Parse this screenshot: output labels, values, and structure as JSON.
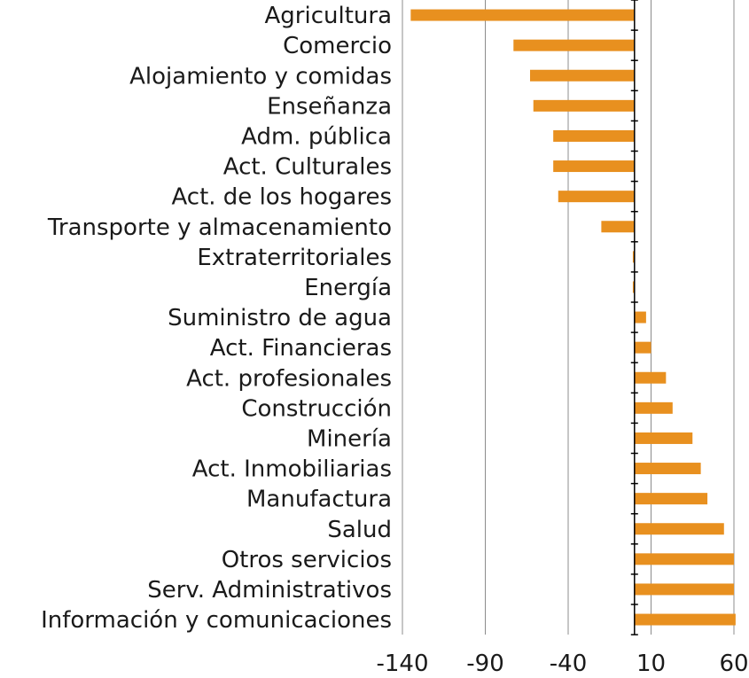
{
  "chart_data": {
    "type": "bar",
    "orientation": "horizontal",
    "title": "",
    "xlabel": "",
    "ylabel": "",
    "xlim": [
      -140,
      60
    ],
    "xticks": [
      -140,
      -90,
      -40,
      10,
      60
    ],
    "grid": true,
    "legend": "none",
    "bar_color": "#E8901F",
    "categories": [
      "Agricultura",
      "Comercio",
      "Alojamiento y comidas",
      "Enseñanza",
      "Adm. pública",
      "Act. Culturales",
      "Act. de los hogares",
      "Transporte y almacenamiento",
      "Extraterritoriales",
      "Energía",
      "Suministro de agua",
      "Act. Financieras",
      "Act. profesionales",
      "Construcción",
      "Minería",
      "Act. Inmobiliarias",
      "Manufactura",
      "Salud",
      "Otros servicios",
      "Serv. Administrativos",
      "Información y comunicaciones"
    ],
    "values": [
      -135,
      -73,
      -63,
      -61,
      -49,
      -49,
      -46,
      -20,
      -1,
      -1,
      7,
      10,
      19,
      23,
      35,
      40,
      44,
      54,
      60,
      60,
      61
    ]
  }
}
